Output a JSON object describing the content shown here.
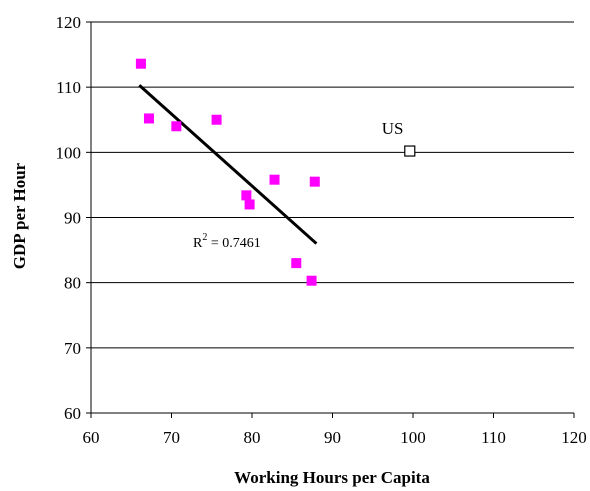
{
  "chart_data": {
    "type": "scatter",
    "title": "",
    "xlabel": "Working Hours per Capita",
    "ylabel": "GDP per Hour",
    "xlim": [
      60,
      120
    ],
    "ylim": [
      60,
      120
    ],
    "xticks": [
      60,
      70,
      80,
      90,
      100,
      110,
      120
    ],
    "yticks": [
      60,
      70,
      80,
      90,
      100,
      110,
      120
    ],
    "grid": "horizontal",
    "legend": "none",
    "colors": {
      "points": "#ff00ff",
      "trendline": "#000000",
      "outlier": "#000000"
    },
    "series": [
      {
        "points": [
          {
            "x": 66.2,
            "y": 113.6
          },
          {
            "x": 67.2,
            "y": 105.2
          },
          {
            "x": 70.6,
            "y": 104.0
          },
          {
            "x": 75.6,
            "y": 105.0
          },
          {
            "x": 79.3,
            "y": 93.4
          },
          {
            "x": 79.7,
            "y": 92.0
          },
          {
            "x": 82.8,
            "y": 95.8
          },
          {
            "x": 87.8,
            "y": 95.5
          },
          {
            "x": 85.5,
            "y": 83.0
          },
          {
            "x": 87.4,
            "y": 80.3
          }
        ]
      },
      {
        "label": "US",
        "marker": "hollow-square",
        "points": [
          {
            "x": 99.6,
            "y": 100.2
          }
        ]
      }
    ],
    "trendline": {
      "start": {
        "x": 66.0,
        "y": 110.3
      },
      "end": {
        "x": 88.0,
        "y": 86.0
      },
      "r2_label": "0.7461"
    }
  }
}
